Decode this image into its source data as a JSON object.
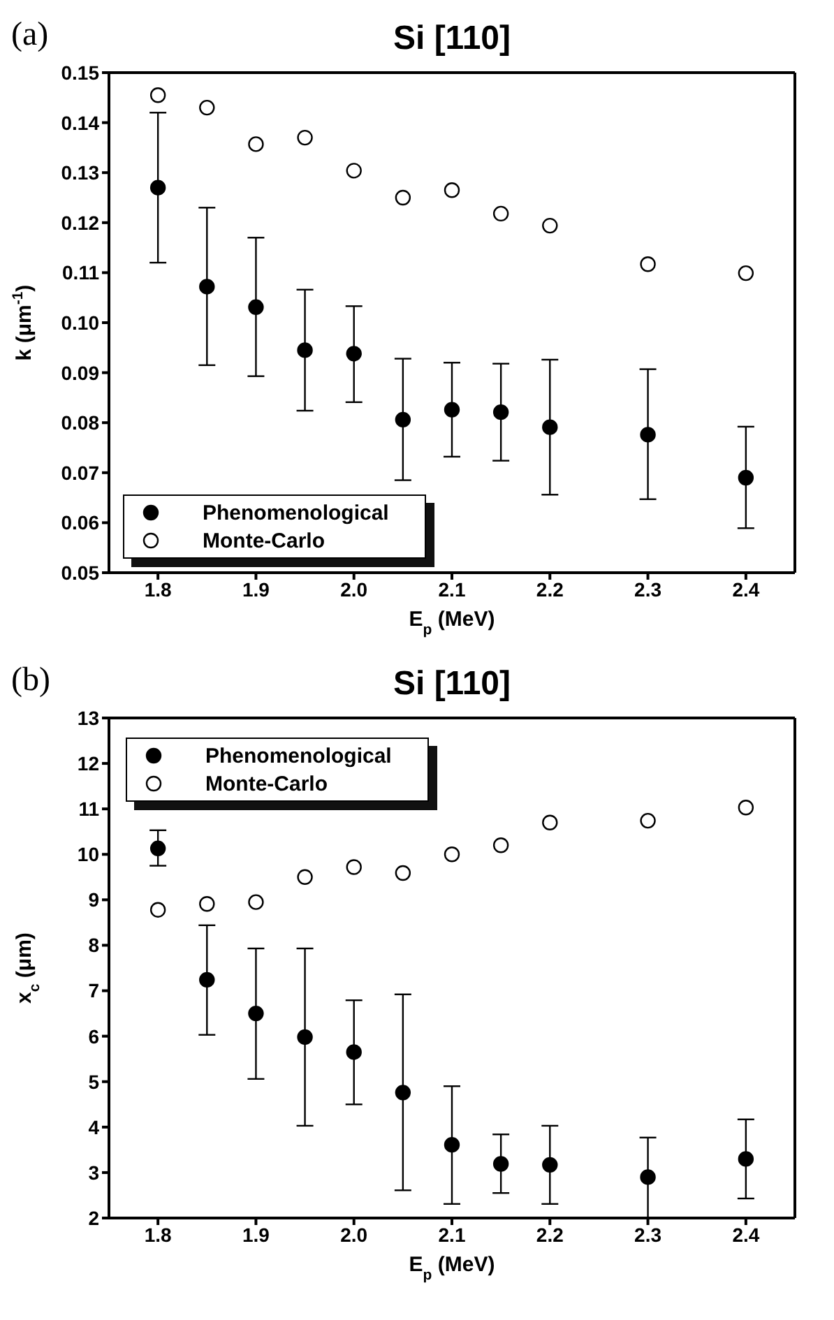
{
  "chart_data": [
    {
      "type": "scatter",
      "title": "Si [110]",
      "xlabel": "E$_{p}$ (MeV)",
      "ylabel": "k (μm$^{-1}$)",
      "annotations": [
        "(a)"
      ],
      "x": [
        1.8,
        1.85,
        1.9,
        1.95,
        2.0,
        2.05,
        2.1,
        2.15,
        2.2,
        2.3,
        2.4
      ],
      "xlim": [
        1.75,
        2.45
      ],
      "xticks": [
        1.8,
        1.9,
        {
          "value": 2,
          "label": "2.0"
        },
        2.1,
        2.2,
        2.3,
        2.4
      ],
      "ylim": [
        0.05,
        0.15
      ],
      "yticks": [
        0.05,
        0.06,
        0.07,
        0.08,
        0.09,
        {
          "value": 0.1,
          "label": "0.10"
        },
        0.11,
        0.12,
        0.13,
        0.14,
        0.15
      ],
      "legend": "bottom left",
      "marker": "circle",
      "series": [
        {
          "name": "Phenomenological",
          "color": "#000000",
          "values": [
            0.127,
            0.1072,
            0.1031,
            0.0945,
            0.0938,
            0.0806,
            0.0826,
            0.0821,
            0.0791,
            0.0776,
            0.069
          ],
          "errors": [
            [
              0.112,
              0.142
            ],
            [
              0.0915,
              0.123
            ],
            [
              0.0893,
              0.117
            ],
            [
              0.0824,
              0.1066
            ],
            [
              0.0841,
              0.1033
            ],
            [
              0.0685,
              0.0928
            ],
            [
              0.0732,
              0.092
            ],
            [
              0.0724,
              0.0918
            ],
            [
              0.0656,
              0.0926
            ],
            [
              0.0647,
              0.0907
            ],
            [
              0.0589,
              0.0792
            ]
          ]
        },
        {
          "name": "Monte-Carlo",
          "color": "#ffffff",
          "values": [
            0.1455,
            0.143,
            0.1357,
            0.137,
            0.1304,
            0.125,
            0.1265,
            0.1218,
            0.1194,
            0.1117,
            0.1099
          ]
        }
      ]
    },
    {
      "type": "scatter",
      "title": "Si [110]",
      "xlabel": "E$_{p}$ (MeV)",
      "ylabel": "x$_{c}$ (μm)",
      "annotations": [
        "(b)"
      ],
      "x": [
        1.8,
        1.85,
        1.9,
        1.95,
        2.0,
        2.05,
        2.1,
        2.15,
        2.2,
        2.3,
        2.4
      ],
      "xlim": [
        1.75,
        2.45
      ],
      "xticks": [
        1.8,
        1.9,
        {
          "value": 2,
          "label": "2.0"
        },
        2.1,
        2.2,
        2.3,
        2.4
      ],
      "ylim": [
        2,
        13
      ],
      "yticks": [
        2,
        3,
        4,
        5,
        6,
        7,
        8,
        9,
        10,
        11,
        12,
        13
      ],
      "legend": "top left",
      "marker": "circle",
      "series": [
        {
          "name": "Phenomenological",
          "color": "#000000",
          "values": [
            10.13,
            7.24,
            6.5,
            5.98,
            5.65,
            4.76,
            3.61,
            3.19,
            3.17,
            2.9,
            3.3
          ],
          "errors": [
            [
              9.75,
              10.53
            ],
            [
              6.03,
              8.44
            ],
            [
              5.06,
              7.93
            ],
            [
              4.03,
              7.93
            ],
            [
              4.5,
              6.79
            ],
            [
              2.61,
              6.92
            ],
            [
              2.31,
              4.9
            ],
            [
              2.55,
              3.84
            ],
            [
              2.31,
              4.03
            ],
            [
              2.0,
              3.77
            ],
            [
              2.43,
              4.17
            ]
          ]
        },
        {
          "name": "Monte-Carlo",
          "color": "#ffffff",
          "values": [
            8.78,
            8.91,
            8.95,
            9.5,
            9.72,
            9.59,
            10.0,
            10.2,
            10.7,
            10.74,
            11.03
          ]
        }
      ]
    }
  ]
}
